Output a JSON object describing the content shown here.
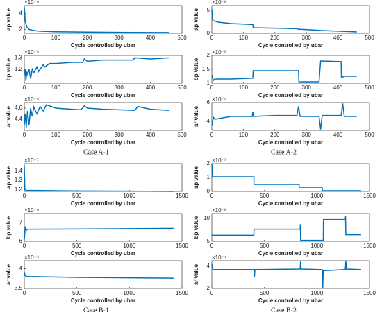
{
  "chart_data": [
    {
      "type": "line",
      "ylabel": "ap value",
      "xlabel": "Cycle controlled by ubar",
      "exponent": "×10⁻⁶",
      "color": "#0072bd",
      "xlim": [
        0,
        500
      ],
      "xticks": [
        0,
        100,
        200,
        300,
        400,
        500
      ],
      "ylim": [
        1.5,
        5
      ],
      "yticks": [
        2,
        4
      ],
      "x": [
        0,
        3,
        8,
        15,
        25,
        40,
        60,
        100,
        150,
        200,
        300,
        400,
        460
      ],
      "values": [
        4.8,
        3,
        2.3,
        2,
        1.9,
        1.8,
        1.75,
        1.7,
        1.68,
        1.65,
        1.62,
        1.6,
        1.6
      ]
    },
    {
      "type": "line",
      "ylabel": "bp value",
      "xlabel": "Cycle controlled by ubar",
      "exponent": "×10⁻⁵",
      "color": "#0072bd",
      "xlim": [
        0,
        500
      ],
      "xticks": [
        0,
        100,
        200,
        300,
        400,
        500
      ],
      "ylim": [
        1.08,
        1.32
      ],
      "yticks": [
        1.2,
        1.3
      ],
      "x": [
        0,
        3,
        5,
        8,
        10,
        15,
        20,
        25,
        30,
        40,
        45,
        60,
        65,
        80,
        100,
        150,
        185,
        190,
        200,
        250,
        300,
        345,
        350,
        400,
        460
      ],
      "values": [
        1.15,
        1.2,
        1.1,
        1.18,
        1.15,
        1.2,
        1.12,
        1.2,
        1.17,
        1.22,
        1.18,
        1.24,
        1.22,
        1.25,
        1.25,
        1.26,
        1.26,
        1.29,
        1.27,
        1.28,
        1.28,
        1.28,
        1.3,
        1.29,
        1.3
      ]
    },
    {
      "type": "line",
      "ylabel": "ar value",
      "xlabel": "Cycle controlled by ubar",
      "exponent": "×10⁻⁴",
      "caption": "Case A-1",
      "color": "#0072bd",
      "xlim": [
        0,
        500
      ],
      "xticks": [
        0,
        100,
        200,
        300,
        400,
        500
      ],
      "ylim": [
        4.2,
        4.7
      ],
      "yticks": [
        4.4,
        4.6
      ],
      "x": [
        0,
        3,
        6,
        10,
        15,
        20,
        25,
        30,
        40,
        50,
        60,
        70,
        100,
        150,
        180,
        190,
        200,
        250,
        300,
        350,
        360,
        400,
        460
      ],
      "values": [
        4.3,
        4.5,
        4.25,
        4.55,
        4.3,
        4.6,
        4.45,
        4.62,
        4.5,
        4.63,
        4.55,
        4.66,
        4.6,
        4.58,
        4.57,
        4.64,
        4.6,
        4.58,
        4.57,
        4.56,
        4.63,
        4.58,
        4.56
      ]
    },
    {
      "type": "line",
      "ylabel": "ap value",
      "xlabel": "Cycle controlled by ubar",
      "exponent": "×10⁻⁶",
      "color": "#0072bd",
      "xlim": [
        0,
        500
      ],
      "xticks": [
        0,
        100,
        200,
        300,
        400,
        500
      ],
      "ylim": [
        0,
        6
      ],
      "yticks": [
        0,
        5
      ],
      "x": [
        0,
        2,
        5,
        20,
        60,
        130,
        131,
        200,
        270,
        271,
        350,
        460
      ],
      "values": [
        5.2,
        3,
        2.7,
        2.4,
        2.1,
        1.9,
        1.2,
        1.1,
        1,
        0.9,
        0.6,
        0.3
      ]
    },
    {
      "type": "line",
      "ylabel": "bp value",
      "xlabel": "Cycle controlled by ubar",
      "exponent": "×10⁻⁵",
      "color": "#0072bd",
      "xlim": [
        0,
        500
      ],
      "xticks": [
        0,
        100,
        200,
        300,
        400,
        500
      ],
      "ylim": [
        1,
        2
      ],
      "yticks": [
        1,
        1.5,
        2
      ],
      "x": [
        0,
        5,
        10,
        60,
        130,
        131,
        200,
        275,
        276,
        340,
        345,
        410,
        411,
        420,
        460
      ],
      "values": [
        1.3,
        1.1,
        1.15,
        1.15,
        1.18,
        1.45,
        1.45,
        1.45,
        1.05,
        1.05,
        1.8,
        1.78,
        1.2,
        1.25,
        1.25
      ]
    },
    {
      "type": "line",
      "ylabel": "ar value",
      "xlabel": "Cycle controlled by ubar",
      "exponent": "×10⁻⁴",
      "caption": "Case A-2",
      "color": "#0072bd",
      "xlim": [
        0,
        500
      ],
      "xticks": [
        0,
        100,
        200,
        300,
        400,
        500
      ],
      "ylim": [
        3,
        6
      ],
      "yticks": [
        4,
        6
      ],
      "x": [
        0,
        5,
        10,
        60,
        128,
        130,
        132,
        200,
        270,
        275,
        280,
        340,
        345,
        350,
        410,
        415,
        420,
        460
      ],
      "values": [
        3.5,
        4.4,
        4.2,
        4.5,
        4.5,
        5,
        4.5,
        4.6,
        4.6,
        5.6,
        4.5,
        4.5,
        3.1,
        4.6,
        4.6,
        5.9,
        4.5,
        4.5
      ]
    },
    {
      "type": "line",
      "ylabel": "ap value",
      "xlabel": "Cycle controlled by ubar",
      "exponent": "×10⁻⁷",
      "color": "#0072bd",
      "xlim": [
        0,
        1500
      ],
      "xticks": [
        0,
        500,
        1000,
        1500
      ],
      "ylim": [
        1.18,
        1.48
      ],
      "yticks": [
        1.2,
        1.3,
        1.4
      ],
      "x": [
        0,
        5,
        20,
        100,
        500,
        1000,
        1420
      ],
      "values": [
        1.45,
        1.2,
        1.19,
        1.19,
        1.185,
        1.183,
        1.18
      ]
    },
    {
      "type": "line",
      "ylabel": "bp value",
      "xlabel": "Cycle controlled by ubar",
      "exponent": "×10⁻⁶",
      "color": "#0072bd",
      "xlim": [
        0,
        1500
      ],
      "xticks": [
        0,
        500,
        1000,
        1500
      ],
      "ylim": [
        6,
        7.5
      ],
      "yticks": [
        6,
        7
      ],
      "x": [
        0,
        10,
        20,
        30,
        100,
        500,
        1000,
        1420
      ],
      "values": [
        6.1,
        6.8,
        6.6,
        6.65,
        6.65,
        6.66,
        6.68,
        6.7
      ]
    },
    {
      "type": "line",
      "ylabel": "ar value",
      "xlabel": "Cycle controlled by ubar",
      "exponent": "×10⁻⁴",
      "caption": "Case B-1",
      "color": "#0072bd",
      "xlim": [
        0,
        1500
      ],
      "xticks": [
        0,
        500,
        1000,
        1500
      ],
      "ylim": [
        3.5,
        4.2
      ],
      "yticks": [
        3.5,
        4
      ],
      "x": [
        0,
        10,
        30,
        100,
        500,
        1000,
        1420
      ],
      "values": [
        3.9,
        3.82,
        3.8,
        3.8,
        3.78,
        3.77,
        3.76
      ]
    },
    {
      "type": "line",
      "ylabel": "ap value",
      "xlabel": "Cycle controlled by ubar",
      "exponent": "×10⁻⁷",
      "color": "#0072bd",
      "xlim": [
        0,
        1500
      ],
      "xticks": [
        0,
        500,
        1000,
        1500
      ],
      "ylim": [
        0,
        2
      ],
      "yticks": [
        0,
        1,
        2
      ],
      "x": [
        0,
        5,
        10,
        400,
        401,
        830,
        831,
        1050,
        1051,
        1420
      ],
      "values": [
        2,
        1.1,
        1.05,
        1.05,
        0.5,
        0.5,
        0.3,
        0.3,
        0.05,
        0.05
      ]
    },
    {
      "type": "line",
      "ylabel": "bp value",
      "xlabel": "Cycle controlled by ubar",
      "exponent": "×10⁻⁶",
      "color": "#0072bd",
      "xlim": [
        0,
        1500
      ],
      "xticks": [
        0,
        500,
        1000,
        1500
      ],
      "ylim": [
        5,
        11
      ],
      "yticks": [
        5,
        10
      ],
      "x": [
        0,
        10,
        20,
        400,
        401,
        840,
        842,
        845,
        1060,
        1062,
        1065,
        1270,
        1272,
        1275,
        1280,
        1420
      ],
      "values": [
        6.6,
        6.2,
        6.3,
        6.3,
        7.6,
        7.6,
        8.7,
        5.2,
        5.2,
        9.7,
        9.7,
        9.7,
        10.5,
        6.4,
        6.4,
        6.4
      ]
    },
    {
      "type": "line",
      "ylabel": "ar value",
      "xlabel": "Cycle controlled by ubar",
      "exponent": "×10⁻⁴",
      "caption": "Case B-2",
      "color": "#0072bd",
      "xlim": [
        0,
        1500
      ],
      "xticks": [
        0,
        500,
        1000,
        1500
      ],
      "ylim": [
        2,
        4.5
      ],
      "yticks": [
        2,
        4
      ],
      "x": [
        0,
        10,
        100,
        400,
        405,
        410,
        840,
        845,
        850,
        1050,
        1055,
        1060,
        1270,
        1275,
        1280,
        1420
      ],
      "values": [
        4.2,
        3.7,
        3.7,
        3.7,
        3,
        3.7,
        3.75,
        4.5,
        3.75,
        3.7,
        2,
        3.6,
        3.7,
        4.5,
        3.75,
        3.7
      ]
    }
  ]
}
